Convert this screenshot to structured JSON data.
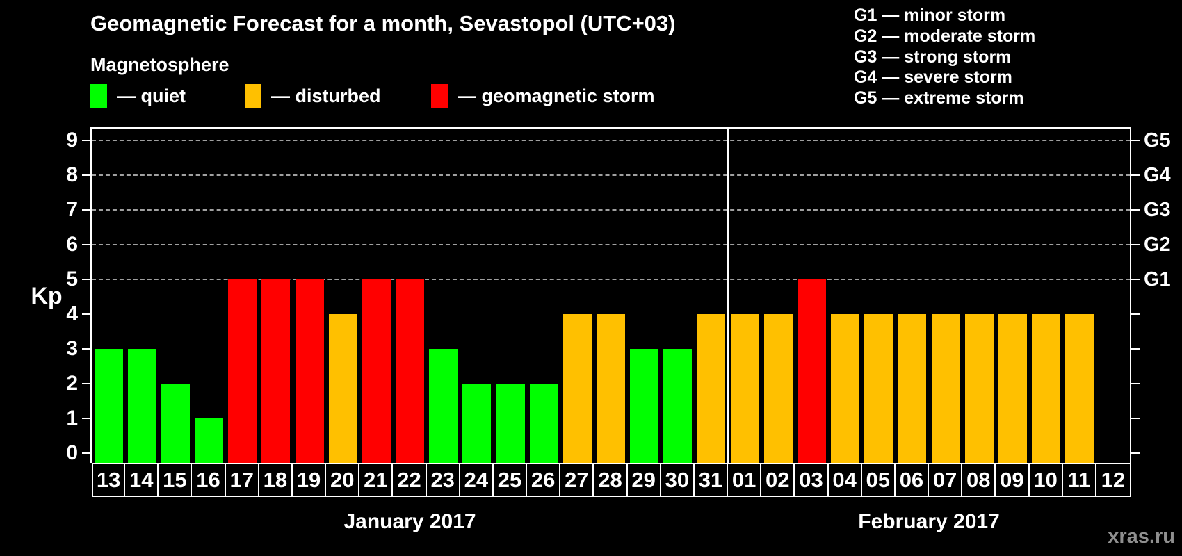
{
  "header": {
    "title": "Geomagnetic Forecast for a month, Sevastopol (UTC+03)",
    "legend_title": "Magnetosphere",
    "legend": [
      {
        "name": "quiet",
        "label": "— quiet",
        "color": "#00ff00"
      },
      {
        "name": "disturbed",
        "label": "— disturbed",
        "color": "#ffc000"
      },
      {
        "name": "storm",
        "label": "— geomagnetic storm",
        "color": "#ff0000"
      }
    ],
    "g_scale_legend": [
      "G1 — minor storm",
      "G2 — moderate storm",
      "G3 — strong storm",
      "G4 — severe storm",
      "G5 — extreme storm"
    ]
  },
  "chart_data": {
    "type": "bar",
    "title": "Geomagnetic Forecast for a month, Sevastopol (UTC+03)",
    "ylabel": "Kp",
    "ylim": [
      0,
      9
    ],
    "yticks": [
      0,
      1,
      2,
      3,
      4,
      5,
      6,
      7,
      8,
      9
    ],
    "grid_on": true,
    "gridlines_at": [
      5,
      6,
      7,
      8,
      9
    ],
    "right_axis": [
      {
        "label": "G1",
        "kp": 5
      },
      {
        "label": "G2",
        "kp": 6
      },
      {
        "label": "G3",
        "kp": 7
      },
      {
        "label": "G4",
        "kp": 8
      },
      {
        "label": "G5",
        "kp": 9
      }
    ],
    "months": [
      {
        "label": "January 2017",
        "days": 19
      },
      {
        "label": "February 2017",
        "days": 12
      }
    ],
    "categories": [
      "13",
      "14",
      "15",
      "16",
      "17",
      "18",
      "19",
      "20",
      "21",
      "22",
      "23",
      "24",
      "25",
      "26",
      "27",
      "28",
      "29",
      "30",
      "31",
      "01",
      "02",
      "03",
      "04",
      "05",
      "06",
      "07",
      "08",
      "09",
      "10",
      "11",
      "12"
    ],
    "values": [
      3,
      3,
      2,
      1,
      5,
      5,
      5,
      4,
      5,
      5,
      3,
      2,
      2,
      2,
      4,
      4,
      3,
      3,
      4,
      4,
      4,
      5,
      4,
      4,
      4,
      4,
      4,
      4,
      4,
      4,
      null
    ],
    "status": [
      "quiet",
      "quiet",
      "quiet",
      "quiet",
      "storm",
      "storm",
      "storm",
      "disturbed",
      "storm",
      "storm",
      "quiet",
      "quiet",
      "quiet",
      "quiet",
      "disturbed",
      "disturbed",
      "quiet",
      "quiet",
      "disturbed",
      "disturbed",
      "disturbed",
      "storm",
      "disturbed",
      "disturbed",
      "disturbed",
      "disturbed",
      "disturbed",
      "disturbed",
      "disturbed",
      "disturbed",
      null
    ],
    "status_colors": {
      "quiet": "#00ff00",
      "disturbed": "#ffc000",
      "storm": "#ff0000"
    },
    "colors": {
      "axis": "#ffffff",
      "grid": "#a0a0a0",
      "background": "#000000",
      "text": "#ffffff"
    }
  },
  "footer": {
    "watermark": "xras.ru"
  }
}
